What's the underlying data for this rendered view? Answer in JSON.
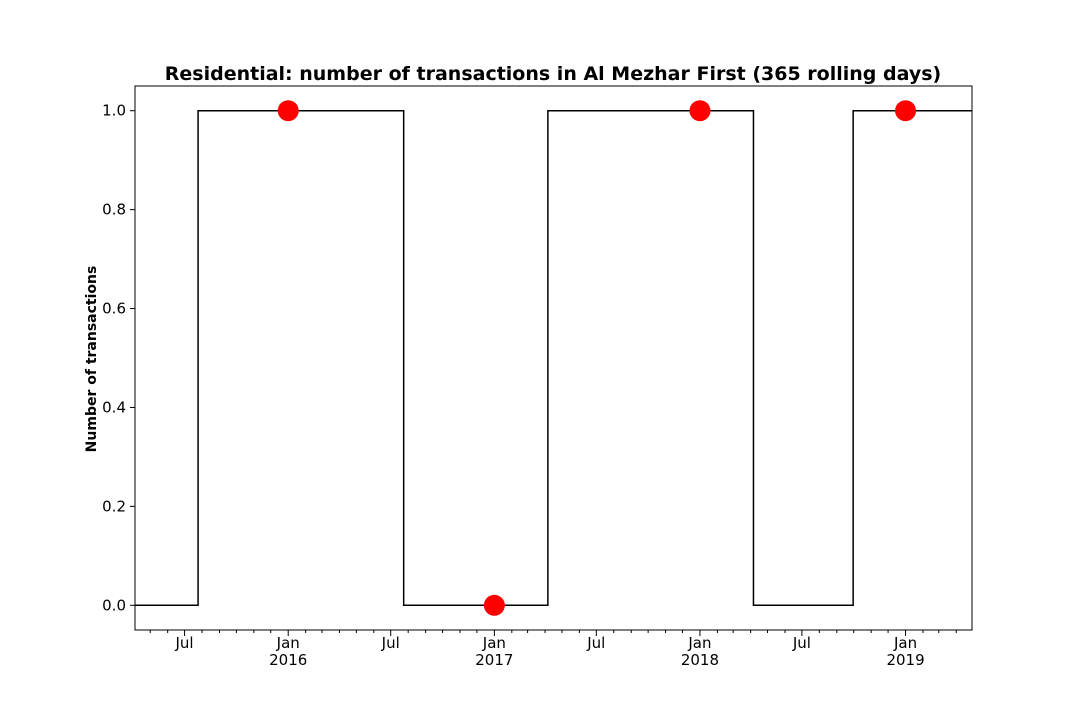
{
  "chart_data": {
    "type": "line",
    "title": "Residential: number of transactions in Al Mezhar First (365 rolling days)",
    "xlabel": "",
    "ylabel": "Number of transactions",
    "xlim": [
      "2015-04-04",
      "2019-04-29"
    ],
    "ylim": [
      -0.05,
      1.05
    ],
    "grid": false,
    "legend": "none",
    "y_ticks": [
      0.0,
      0.2,
      0.4,
      0.6,
      0.8,
      1.0
    ],
    "y_tick_labels": [
      "0.0",
      "0.2",
      "0.4",
      "0.6",
      "0.8",
      "1.0"
    ],
    "x_ticks": [
      {
        "date": "2015-07-01",
        "label": "Jul"
      },
      {
        "date": "2016-01-01",
        "label": "Jan\n2016"
      },
      {
        "date": "2016-07-01",
        "label": "Jul"
      },
      {
        "date": "2017-01-01",
        "label": "Jan\n2017"
      },
      {
        "date": "2017-07-01",
        "label": "Jul"
      },
      {
        "date": "2018-01-01",
        "label": "Jan\n2018"
      },
      {
        "date": "2018-07-01",
        "label": "Jul"
      },
      {
        "date": "2019-01-01",
        "label": "Jan\n2019"
      }
    ],
    "series": [
      {
        "style": "step",
        "color": "#000000",
        "points": [
          {
            "x": "2015-04-04",
            "y": 0
          },
          {
            "x": "2015-07-25",
            "y": 0
          },
          {
            "x": "2015-07-25",
            "y": 1
          },
          {
            "x": "2016-07-24",
            "y": 1
          },
          {
            "x": "2016-07-24",
            "y": 0
          },
          {
            "x": "2017-04-06",
            "y": 0
          },
          {
            "x": "2017-04-06",
            "y": 1
          },
          {
            "x": "2018-04-06",
            "y": 1
          },
          {
            "x": "2018-04-06",
            "y": 0
          },
          {
            "x": "2018-09-30",
            "y": 0
          },
          {
            "x": "2018-09-30",
            "y": 1
          },
          {
            "x": "2019-04-29",
            "y": 1
          }
        ]
      },
      {
        "style": "markers",
        "color": "#ff0000",
        "points": [
          {
            "x": "2016-01-01",
            "y": 1
          },
          {
            "x": "2017-01-01",
            "y": 0
          },
          {
            "x": "2018-01-01",
            "y": 1
          },
          {
            "x": "2019-01-01",
            "y": 1
          }
        ]
      }
    ]
  }
}
